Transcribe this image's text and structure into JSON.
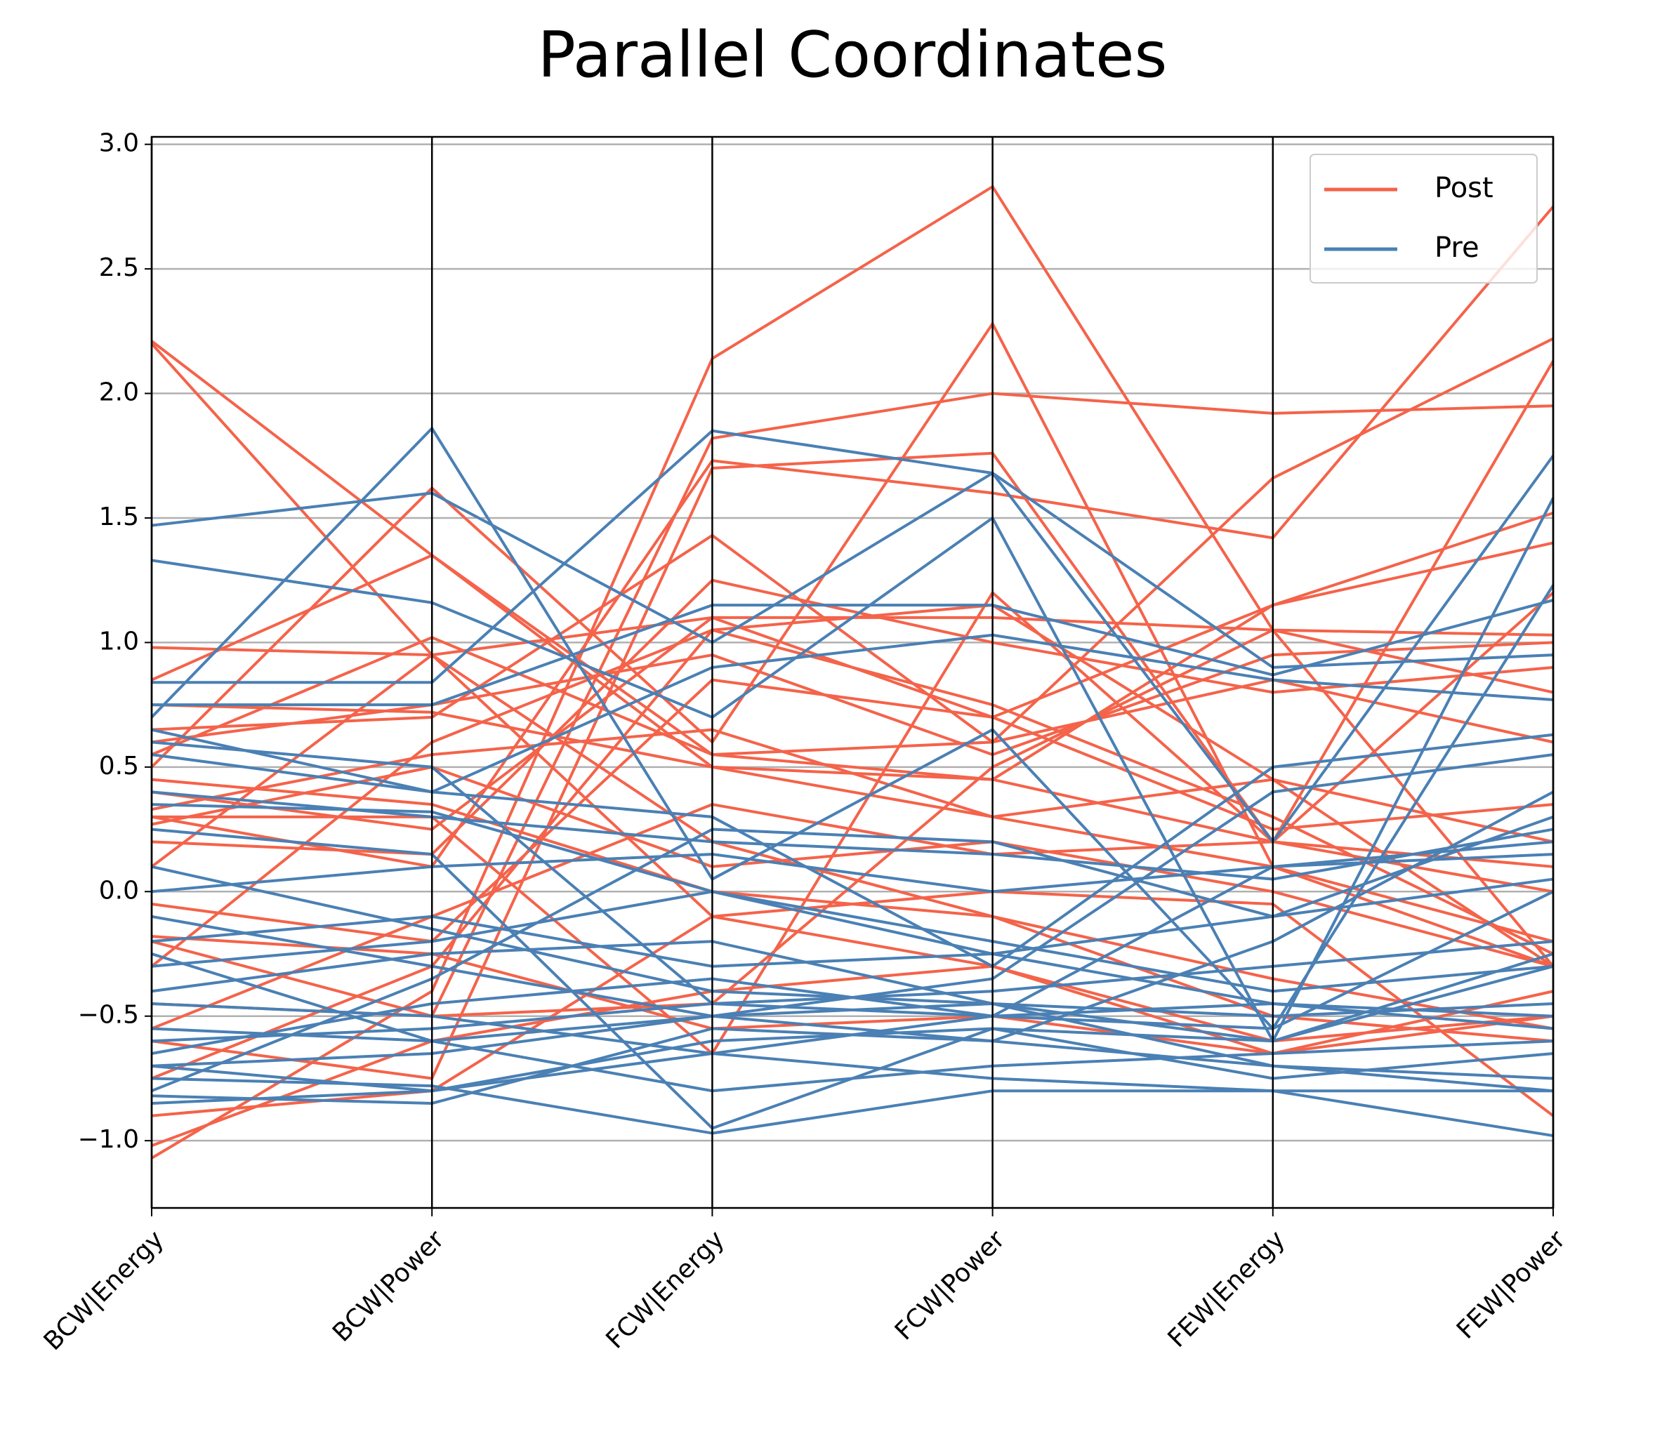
{
  "chart_data": {
    "type": "parallel",
    "title": "Parallel Coordinates",
    "categories": [
      "BCW|Energy",
      "BCW|Power",
      "FCW|Energy",
      "FCW|Power",
      "FEW|Energy",
      "FEW|Power"
    ],
    "ylim": [
      -1.27,
      3.03
    ],
    "yticks": [
      {
        "value": -1,
        "label": "−1.0"
      },
      {
        "value": -0.5,
        "label": "−0.5"
      },
      {
        "value": 0,
        "label": "0.0"
      },
      {
        "value": 0.5,
        "label": "0.5"
      },
      {
        "value": 1,
        "label": "1.0"
      },
      {
        "value": 1.5,
        "label": "1.5"
      },
      {
        "value": 2,
        "label": "2.0"
      },
      {
        "value": 2.5,
        "label": "2.5"
      },
      {
        "value": 3,
        "label": "3.0"
      }
    ],
    "grid": true,
    "legend": "upper right",
    "series": [
      {
        "name": "Post",
        "color": "#f4634a",
        "values": [
          [
            2.21,
            1.35,
            0.55,
            0.45,
            0.2,
            0.0
          ],
          [
            2.2,
            0.95,
            -0.1,
            -0.3,
            -0.6,
            -0.5
          ],
          [
            0.98,
            0.95,
            1.1,
            1.1,
            1.05,
            1.03
          ],
          [
            0.85,
            1.35,
            0.5,
            0.45,
            1.15,
            1.52
          ],
          [
            -1.07,
            -0.4,
            2.14,
            2.83,
            1.05,
            -0.3
          ],
          [
            -0.2,
            -0.5,
            1.82,
            2.0,
            1.92,
            1.95
          ],
          [
            0.5,
            1.62,
            0.6,
            2.28,
            0.1,
            -0.2
          ],
          [
            0.3,
            0.1,
            1.73,
            1.6,
            1.42,
            2.75
          ],
          [
            0.65,
            0.7,
            1.43,
            0.6,
            1.66,
            2.22
          ],
          [
            -0.6,
            -0.75,
            1.7,
            1.76,
            0.2,
            2.13
          ],
          [
            0.4,
            0.25,
            1.1,
            0.7,
            1.15,
            1.4
          ],
          [
            0.3,
            0.3,
            -0.65,
            1.2,
            0.2,
            1.2
          ],
          [
            0.6,
            0.75,
            0.95,
            0.55,
            0.95,
            1.0
          ],
          [
            0.2,
            0.15,
            1.25,
            1.0,
            0.8,
            0.9
          ],
          [
            0.75,
            0.72,
            0.5,
            0.3,
            0.1,
            -0.3
          ],
          [
            0.1,
            0.95,
            0.2,
            -0.1,
            -0.5,
            -0.6
          ],
          [
            -0.05,
            -0.2,
            0.85,
            0.7,
            0.25,
            0.35
          ],
          [
            -0.45,
            -0.5,
            -0.45,
            0.5,
            1.05,
            0.8
          ],
          [
            -0.9,
            -0.8,
            -0.1,
            0.0,
            -0.05,
            -0.9
          ],
          [
            -1.02,
            -0.6,
            -0.4,
            -0.3,
            -0.65,
            -0.5
          ],
          [
            0.55,
            1.02,
            0.55,
            0.6,
            0.85,
            0.6
          ],
          [
            -0.18,
            -0.25,
            -0.55,
            -0.5,
            -0.65,
            -0.4
          ],
          [
            0.27,
            0.5,
            0.1,
            0.2,
            0.0,
            -0.3
          ],
          [
            -0.55,
            -0.1,
            0.35,
            0.15,
            0.2,
            0.1
          ],
          [
            0.33,
            0.55,
            0.65,
            0.3,
            0.45,
            0.2
          ],
          [
            -0.75,
            -0.3,
            1.05,
            0.75,
            0.3,
            -0.25
          ],
          [
            0.45,
            0.35,
            0.0,
            -0.1,
            -0.35,
            -0.55
          ],
          [
            -0.3,
            0.6,
            1.05,
            1.15,
            0.45,
            -0.3
          ]
        ]
      },
      {
        "name": "Pre",
        "color": "#4a80b4",
        "values": [
          [
            1.47,
            1.6,
            1.0,
            1.68,
            0.2,
            1.75
          ],
          [
            1.33,
            1.16,
            0.7,
            1.5,
            -0.6,
            1.58
          ],
          [
            0.7,
            1.86,
            0.05,
            0.65,
            -0.55,
            1.23
          ],
          [
            0.84,
            0.84,
            1.85,
            1.68,
            0.9,
            0.95
          ],
          [
            0.75,
            0.75,
            1.15,
            1.15,
            0.87,
            1.17
          ],
          [
            0.65,
            0.4,
            0.3,
            -0.3,
            0.5,
            0.63
          ],
          [
            0.55,
            0.4,
            0.9,
            1.03,
            0.85,
            0.77
          ],
          [
            0.4,
            0.3,
            0.2,
            0.15,
            0.05,
            0.25
          ],
          [
            0.25,
            0.15,
            -0.95,
            -0.55,
            -0.6,
            -0.3
          ],
          [
            0.1,
            -0.15,
            -0.4,
            -0.45,
            -0.7,
            -0.8
          ],
          [
            -0.1,
            -0.3,
            -0.5,
            -0.35,
            0.4,
            0.55
          ],
          [
            -0.3,
            -0.2,
            0.0,
            -0.2,
            -0.4,
            -0.3
          ],
          [
            -0.45,
            -0.5,
            -0.65,
            -0.5,
            -0.45,
            -0.5
          ],
          [
            -0.55,
            -0.6,
            -0.8,
            -0.7,
            -0.65,
            -0.6
          ],
          [
            -0.65,
            -0.45,
            -0.35,
            -0.5,
            -0.55,
            0.0
          ],
          [
            -0.7,
            -0.8,
            -0.6,
            -0.55,
            -0.75,
            -0.65
          ],
          [
            -0.8,
            -0.35,
            0.25,
            0.2,
            -0.1,
            0.3
          ],
          [
            -0.82,
            -0.85,
            -0.55,
            -0.6,
            -0.7,
            -0.75
          ],
          [
            -0.75,
            -0.78,
            -0.97,
            -0.8,
            -0.8,
            -0.98
          ],
          [
            -0.6,
            -0.55,
            -0.45,
            -0.4,
            -0.3,
            -0.2
          ],
          [
            -0.2,
            -0.1,
            -0.3,
            -0.25,
            -0.1,
            0.05
          ],
          [
            0.0,
            0.1,
            0.15,
            0.0,
            0.1,
            0.2
          ],
          [
            -0.4,
            -0.25,
            -0.2,
            -0.45,
            -0.5,
            -0.45
          ],
          [
            -0.85,
            -0.8,
            -0.65,
            -0.75,
            -0.8,
            -0.8
          ],
          [
            0.35,
            0.32,
            0.0,
            -0.25,
            -0.45,
            -0.55
          ],
          [
            -0.25,
            -0.6,
            -0.5,
            -0.6,
            -0.2,
            0.4
          ],
          [
            0.6,
            0.5,
            -0.45,
            -0.5,
            0.1,
            0.15
          ],
          [
            -0.7,
            -0.65,
            -0.5,
            -0.45,
            -0.6,
            -0.25
          ]
        ]
      }
    ]
  }
}
